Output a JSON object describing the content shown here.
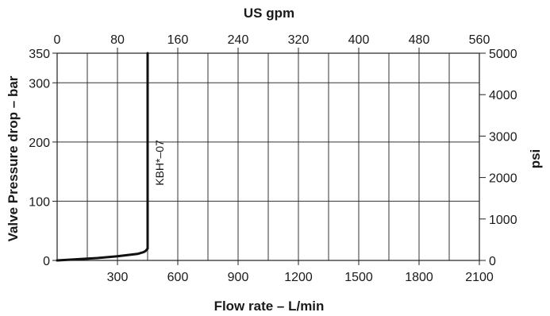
{
  "chart_data": {
    "type": "line",
    "title": "",
    "top_axis": {
      "label": "US gpm",
      "ticks": [
        "0",
        "80",
        "160",
        "240",
        "320",
        "400",
        "480",
        "560"
      ],
      "values": [
        0,
        80,
        160,
        240,
        320,
        400,
        480,
        560
      ]
    },
    "bottom_axis": {
      "label": "Flow rate – L/min",
      "ticks": [
        "300",
        "600",
        "900",
        "1200",
        "1500",
        "1800",
        "2100"
      ],
      "values": [
        300,
        600,
        900,
        1200,
        1500,
        1800,
        2100
      ],
      "range": [
        0,
        2100
      ]
    },
    "left_axis": {
      "label": "Valve Pressure drop – bar",
      "ticks": [
        "0",
        "100",
        "200",
        "300",
        "350"
      ],
      "values": [
        0,
        100,
        200,
        300,
        350
      ],
      "range": [
        0,
        350
      ]
    },
    "right_axis": {
      "label": "psi",
      "ticks": [
        "0",
        "1000",
        "2000",
        "3000",
        "4000",
        "5000"
      ],
      "values": [
        0,
        1000,
        2000,
        3000,
        4000,
        5000
      ],
      "range": [
        0,
        5000
      ]
    },
    "grid": true,
    "series": [
      {
        "name": "KBH*–07",
        "x": [
          0,
          100,
          200,
          300,
          350,
          400,
          430,
          440,
          445,
          450,
          450,
          450
        ],
        "y": [
          0,
          2,
          4,
          7,
          9,
          11,
          14,
          16,
          18,
          20,
          150,
          350
        ]
      }
    ]
  }
}
